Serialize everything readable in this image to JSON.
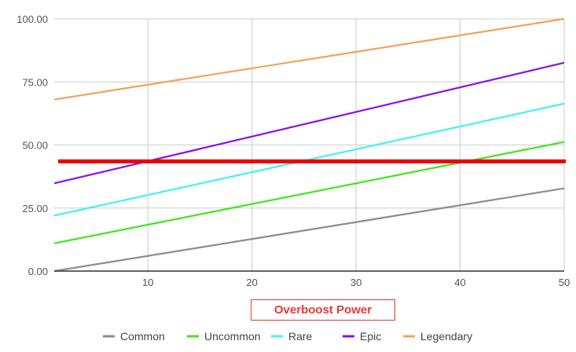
{
  "chart_data": {
    "type": "line",
    "xlabel": "Overboost Power",
    "ylabel": "",
    "title": "",
    "xlim": [
      1,
      50
    ],
    "ylim": [
      0,
      100
    ],
    "x_ticks": [
      10,
      20,
      30,
      40,
      50
    ],
    "y_ticks": [
      0,
      25,
      50,
      75,
      100
    ],
    "y_tick_labels": [
      "0.00",
      "25.00",
      "50.00",
      "75.00",
      "100.00"
    ],
    "x_tick_labels": [
      "10",
      "20",
      "30",
      "40",
      "50"
    ],
    "grid": true,
    "legend_position": "bottom",
    "series": [
      {
        "name": "Common",
        "color": "#8c8c8c",
        "x": [
          1,
          50
        ],
        "y": [
          0,
          32.8
        ]
      },
      {
        "name": "Uncommon",
        "color": "#3fe61b",
        "x": [
          1,
          50
        ],
        "y": [
          11.0,
          51.2
        ]
      },
      {
        "name": "Rare",
        "color": "#44f0f7",
        "x": [
          1,
          50
        ],
        "y": [
          22.0,
          66.4
        ]
      },
      {
        "name": "Epic",
        "color": "#8a10ee",
        "x": [
          1,
          50
        ],
        "y": [
          34.8,
          82.6
        ]
      },
      {
        "name": "Legendary",
        "color": "#f0a35e",
        "x": [
          1,
          50
        ],
        "y": [
          68.0,
          100.0
        ]
      }
    ],
    "reference_line": {
      "y": 43.5,
      "color": "#ee0000"
    }
  }
}
